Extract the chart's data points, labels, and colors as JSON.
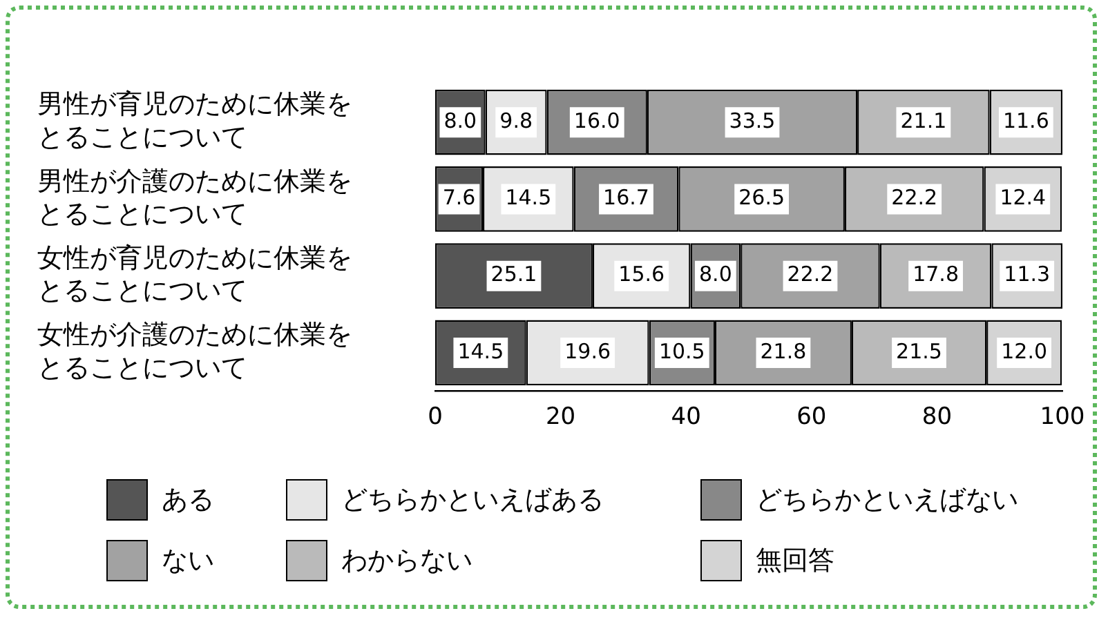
{
  "chart_data": {
    "type": "bar",
    "orientation": "horizontal",
    "stacked": true,
    "grid": false,
    "legend": "bottom",
    "categories": [
      "男性が育児のために休業をとることについて",
      "男性が介護のために休業をとることについて",
      "女性が育児のために休業をとることについて",
      "女性が介護のために休業をとることについて"
    ],
    "xlim": [
      0,
      100
    ],
    "xticks": [
      0,
      20,
      40,
      60,
      80,
      100
    ],
    "series": [
      {
        "name": "ある",
        "color": "#555555",
        "values": [
          8.0,
          7.6,
          25.1,
          14.5
        ],
        "value_labels": [
          "8.0",
          "7.6",
          "25.1",
          "14.5"
        ]
      },
      {
        "name": "どちらかといえばある",
        "color": "#e6e6e6",
        "values": [
          9.8,
          14.5,
          15.6,
          19.6
        ],
        "value_labels": [
          "9.8",
          "14.5",
          "15.6",
          "19.6"
        ]
      },
      {
        "name": "どちらかといえばない",
        "color": "#888888",
        "values": [
          16.0,
          16.7,
          8.0,
          10.5
        ],
        "value_labels": [
          "16.0",
          "16.7",
          "8.0",
          "10.5"
        ]
      },
      {
        "name": "ない",
        "color": "#a2a2a2",
        "values": [
          33.5,
          26.5,
          22.2,
          21.8
        ],
        "value_labels": [
          "33.5",
          "26.5",
          "22.2",
          "21.8"
        ]
      },
      {
        "name": "わからない",
        "color": "#bababa",
        "values": [
          21.1,
          22.2,
          17.8,
          21.5
        ],
        "value_labels": [
          "21.1",
          "22.2",
          "17.8",
          "21.5"
        ]
      },
      {
        "name": "無回答",
        "color": "#d4d4d4",
        "values": [
          11.6,
          12.4,
          11.3,
          12.0
        ],
        "value_labels": [
          "11.6",
          "12.4",
          "11.3",
          "12.0"
        ]
      }
    ]
  }
}
